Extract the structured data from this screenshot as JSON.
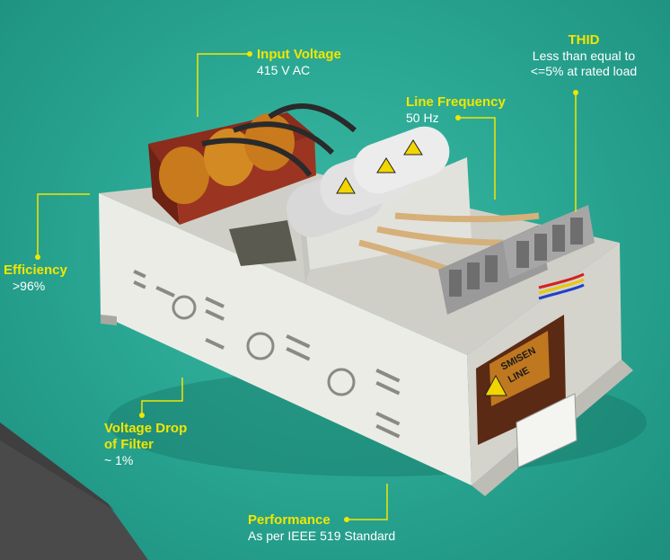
{
  "colors": {
    "background": "#2aa894",
    "accent_yellow": "#f2e600",
    "text_white": "#ffffff",
    "cabinet": "#e6e6e0",
    "capacitor": "#d8d8d8",
    "coil_orange": "#c87a1c",
    "core_red": "#8c2c1c",
    "terminal_grey": "#9a9a9a"
  },
  "product": {
    "label_line1": "SMISEN",
    "label_line2": "LINE"
  },
  "callouts": {
    "input_voltage": {
      "title": "Input Voltage",
      "value": "415 V AC"
    },
    "thid": {
      "title": "THID",
      "value_line1": "Less than equal to",
      "value_line2": "<=5% at rated load"
    },
    "line_frequency": {
      "title": "Line Frequency",
      "value": "50 Hz"
    },
    "efficiency": {
      "title": "Efficiency",
      "value": ">96%"
    },
    "voltage_drop": {
      "title_line1": "Voltage Drop",
      "title_line2": "of Filter",
      "value": "~ 1%"
    },
    "performance": {
      "title": "Performance",
      "value": "As per IEEE 519 Standard"
    }
  }
}
